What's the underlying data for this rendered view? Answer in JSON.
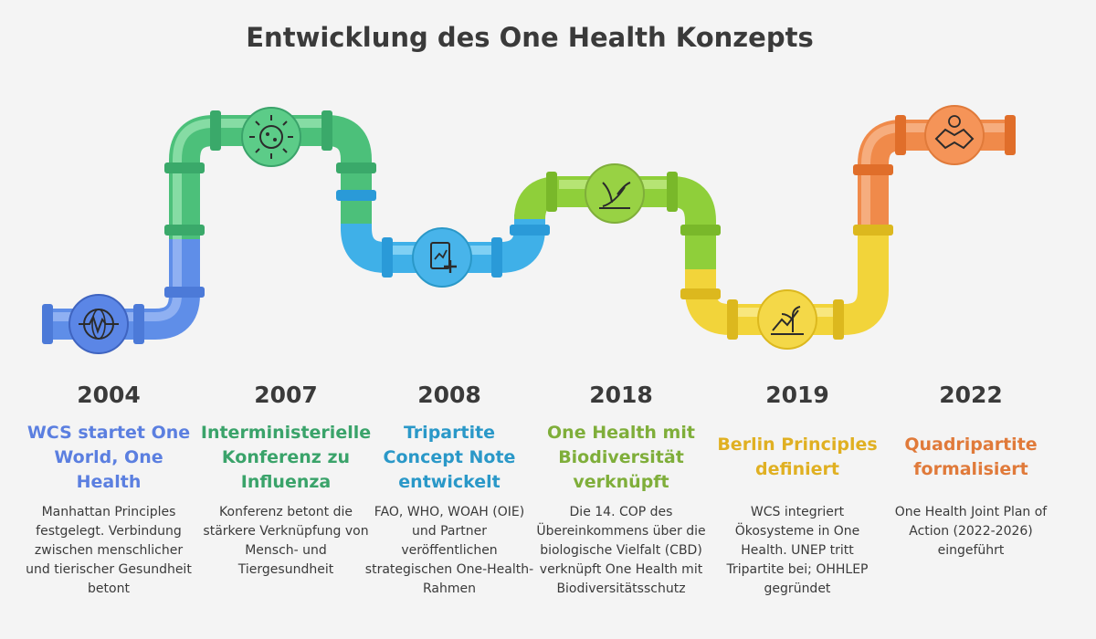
{
  "title": "Entwicklung des One Health Konzepts",
  "milestones": [
    {
      "year": "2004",
      "heading": "WCS startet One World, One Health",
      "description": "Manhattan Principles festgelegt. Verbindung zwischen menschlicher und tierischer Gesundheit betont",
      "color": "#5b7fe0",
      "icon": "globe-heartbeat-icon"
    },
    {
      "year": "2007",
      "heading": "Interministerielle Konferenz zu Influenza",
      "description": "Konferenz betont die stärkere Verknüpfung von Mensch- und Tiergesundheit",
      "color": "#3aa36a",
      "icon": "virus-icon"
    },
    {
      "year": "2008",
      "heading": "Tripartite Concept Note entwickelt",
      "description": "FAO, WHO, WOAH (OIE) und Partner veröffentlichen strategischen One-Health-Rahmen",
      "color": "#2a98c8",
      "icon": "health-document-icon"
    },
    {
      "year": "2018",
      "heading": "One Health mit Biodiversität verknüpft",
      "description": "Die 14. COP des Übereinkommens über die biologische Vielfalt (CBD) verknüpft One Health mit Biodiversitätsschutz",
      "color": "#7fae3a",
      "icon": "plant-growth-icon"
    },
    {
      "year": "2019",
      "heading": "Berlin Principles definiert",
      "description": "WCS integriert Ökosysteme in One Health. UNEP tritt Tripartite bei; OHHLEP gegründet",
      "color": "#e0b022",
      "icon": "ecosystem-growth-icon"
    },
    {
      "year": "2022",
      "heading": "Quadripartite formalisiert",
      "description": "One Health Joint Plan of Action (2022-2026) eingeführt",
      "color": "#e07a3a",
      "icon": "handshake-icon"
    }
  ]
}
